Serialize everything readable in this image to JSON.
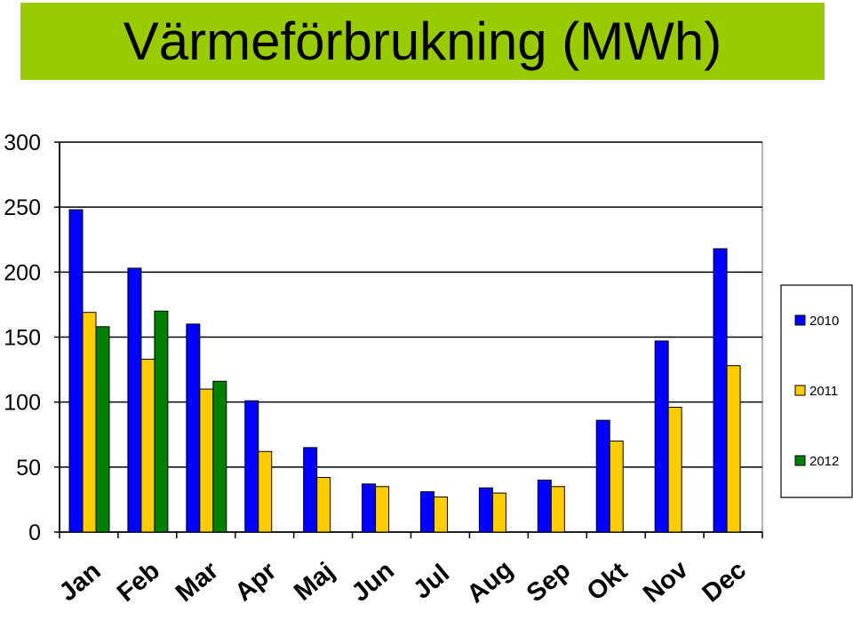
{
  "chart_data": {
    "type": "bar",
    "title": "Värmeförbrukning (MWh)",
    "categories": [
      "Jan",
      "Feb",
      "Mar",
      "Apr",
      "Maj",
      "Jun",
      "Jul",
      "Aug",
      "Sep",
      "Okt",
      "Nov",
      "Dec"
    ],
    "series": [
      {
        "name": "2010",
        "color": "#0000ff",
        "values": [
          248,
          203,
          160,
          101,
          65,
          37,
          31,
          34,
          40,
          86,
          147,
          218
        ]
      },
      {
        "name": "2011",
        "color": "#ffcc00",
        "values": [
          169,
          133,
          110,
          62,
          42,
          35,
          27,
          30,
          35,
          70,
          96,
          128
        ]
      },
      {
        "name": "2012",
        "color": "#008000",
        "values": [
          158,
          170,
          116,
          null,
          null,
          null,
          null,
          null,
          null,
          null,
          null,
          null
        ]
      }
    ],
    "ylim": [
      0,
      300
    ],
    "yticks": [
      "0",
      "50",
      "100",
      "150",
      "200",
      "250",
      "300"
    ],
    "xlabel": "",
    "ylabel": "",
    "grid": true,
    "legend_position": "right"
  }
}
